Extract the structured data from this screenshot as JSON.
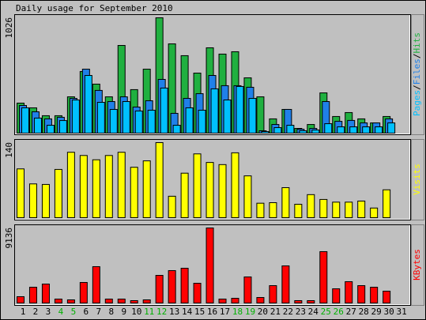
{
  "chart_data": [
    {
      "type": "bar",
      "title": "Daily usage for September 2010",
      "ylim": [
        0,
        1026
      ],
      "yticks": [
        1026
      ],
      "legend_separator": "/",
      "series": [
        {
          "name": "Hits",
          "color": "#20b040",
          "values": [
            267,
            225,
            155,
            155,
            323,
            548,
            436,
            323,
            780,
            387,
            569,
            1026,
            794,
            689,
            534,
            759,
            703,
            724,
            492,
            323,
            127,
            211,
            42,
            77,
            358,
            148,
            183,
            127,
            91,
            148,
            null
          ]
        },
        {
          "name": "Files",
          "color": "#2080e8",
          "values": [
            246,
            190,
            127,
            141,
            309,
            569,
            380,
            281,
            323,
            232,
            288,
            478,
            176,
            309,
            351,
            513,
            422,
            422,
            408,
            21,
            77,
            211,
            35,
            42,
            281,
            105,
            113,
            91,
            91,
            127,
            null
          ]
        },
        {
          "name": "Pages",
          "color": "#00c0ff",
          "values": [
            225,
            134,
            70,
            112,
            295,
            513,
            274,
            211,
            281,
            197,
            204,
            401,
            70,
            225,
            204,
            394,
            295,
            415,
            309,
            14,
            49,
            70,
            21,
            28,
            84,
            56,
            56,
            56,
            56,
            91,
            null
          ]
        }
      ]
    },
    {
      "type": "bar",
      "ylim": [
        0,
        140
      ],
      "yticks": [
        140
      ],
      "series": [
        {
          "name": "Visits",
          "color": "#ffff00",
          "values": [
            91,
            63,
            62,
            90,
            122,
            116,
            108,
            116,
            122,
            94,
            106,
            140,
            40,
            83,
            119,
            103,
            99,
            121,
            78,
            27,
            28,
            56,
            25,
            43,
            34,
            29,
            29,
            31,
            18,
            52,
            null
          ]
        }
      ]
    },
    {
      "type": "bar",
      "ylim": [
        0,
        9136
      ],
      "yticks": [
        9136
      ],
      "categories": [
        "1",
        "2",
        "3",
        "4",
        "5",
        "6",
        "7",
        "8",
        "9",
        "10",
        "11",
        "12",
        "13",
        "14",
        "15",
        "16",
        "17",
        "18",
        "19",
        "20",
        "21",
        "22",
        "23",
        "24",
        "25",
        "26",
        "27",
        "28",
        "29",
        "30",
        "31"
      ],
      "weekend": [
        false,
        false,
        false,
        true,
        true,
        false,
        false,
        false,
        false,
        false,
        true,
        true,
        false,
        false,
        false,
        false,
        false,
        true,
        true,
        false,
        false,
        false,
        false,
        false,
        true,
        true,
        false,
        false,
        false,
        false,
        false
      ],
      "weekend_color": "#00b000",
      "series": [
        {
          "name": "KBytes",
          "color": "#ff0000",
          "values": [
            770,
            1924,
            2309,
            481,
            385,
            2501,
            4425,
            481,
            481,
            289,
            385,
            3366,
            3944,
            4233,
            2405,
            9136,
            481,
            577,
            3175,
            673,
            2116,
            4521,
            289,
            289,
            6253,
            1732,
            2597,
            2116,
            1924,
            1443,
            null
          ]
        }
      ]
    }
  ]
}
